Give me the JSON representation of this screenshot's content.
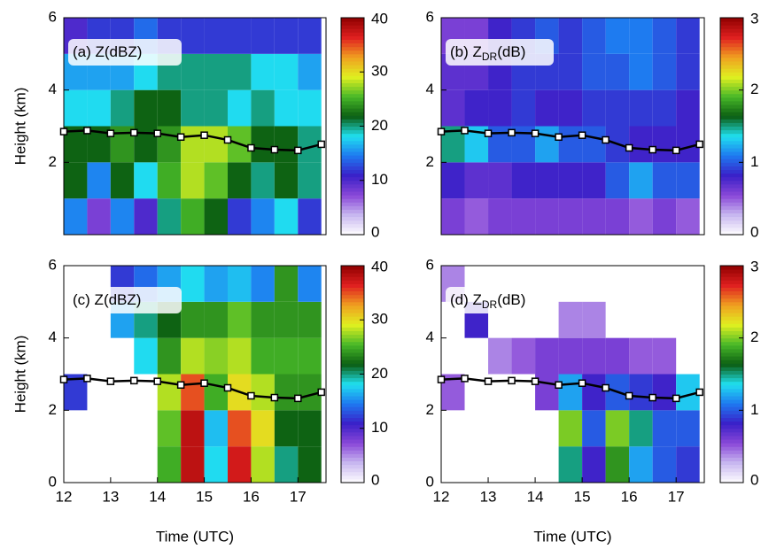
{
  "chart_data": [
    {
      "type": "heatmap",
      "label_parts": [
        "(a) Z",
        "(dBZ)"
      ],
      "ylabel": "Height (km)",
      "xlim": [
        12,
        17.6
      ],
      "ylim": [
        0,
        6
      ],
      "yticks": [
        2,
        4,
        6
      ],
      "xbins": [
        12,
        12.5,
        13,
        13.5,
        14,
        14.5,
        15,
        15.5,
        16,
        16.5,
        17,
        17.5
      ],
      "ybins": [
        0,
        1,
        2,
        3,
        4,
        5,
        6
      ],
      "z": [
        [
          15,
          8,
          15,
          10,
          20,
          25,
          22,
          12,
          15,
          18,
          12
        ],
        [
          22,
          15,
          22,
          18,
          25,
          28,
          26,
          22,
          20,
          22,
          20
        ],
        [
          22,
          22,
          24,
          22,
          24,
          28,
          28,
          26,
          22,
          22,
          20
        ],
        [
          18,
          18,
          20,
          22,
          22,
          20,
          20,
          18,
          20,
          18,
          18
        ],
        [
          16,
          16,
          16,
          18,
          20,
          20,
          20,
          20,
          18,
          18,
          16
        ],
        [
          10,
          12,
          12,
          14,
          12,
          12,
          12,
          12,
          12,
          12,
          12
        ]
      ],
      "colorbar": {
        "lim": [
          0,
          40
        ],
        "ticks": [
          0,
          10,
          20,
          30,
          40
        ]
      },
      "line": {
        "color": "#000000",
        "x": [
          12,
          12.5,
          13,
          13.5,
          14,
          14.5,
          15,
          15.5,
          16,
          16.5,
          17,
          17.5
        ],
        "y": [
          2.85,
          2.88,
          2.8,
          2.82,
          2.8,
          2.7,
          2.75,
          2.62,
          2.4,
          2.35,
          2.33,
          2.5
        ]
      }
    },
    {
      "type": "heatmap",
      "label_parts": [
        "(b) Z",
        "DR",
        "(dB)"
      ],
      "xlim": [
        12,
        17.6
      ],
      "ylim": [
        0,
        6
      ],
      "yticks": [
        2,
        4,
        6
      ],
      "xbins": [
        12,
        12.5,
        13,
        13.5,
        14,
        14.5,
        15,
        15.5,
        16,
        16.5,
        17,
        17.5
      ],
      "ybins": [
        0,
        1,
        2,
        3,
        4,
        5,
        6
      ],
      "z": [
        [
          0.6,
          0.5,
          0.6,
          0.6,
          0.6,
          0.6,
          0.6,
          0.6,
          0.5,
          0.6,
          0.5
        ],
        [
          0.8,
          0.7,
          0.7,
          0.8,
          0.8,
          0.8,
          0.8,
          1.0,
          1.2,
          1.0,
          1.0
        ],
        [
          1.5,
          1.3,
          1.0,
          1.0,
          1.2,
          1.0,
          1.0,
          0.9,
          0.8,
          0.8,
          0.8
        ],
        [
          0.7,
          0.8,
          0.8,
          0.9,
          0.8,
          0.8,
          0.9,
          0.9,
          0.9,
          0.9,
          0.8
        ],
        [
          0.7,
          0.7,
          0.8,
          0.9,
          0.9,
          0.9,
          1.0,
          1.0,
          1.1,
          1.0,
          0.9
        ],
        [
          0.6,
          0.6,
          0.8,
          0.9,
          1.0,
          0.9,
          1.0,
          1.1,
          1.1,
          1.0,
          0.9
        ]
      ],
      "colorbar": {
        "lim": [
          0,
          3
        ],
        "ticks": [
          0,
          1,
          2,
          3
        ]
      },
      "line": {
        "color": "#000000",
        "x": [
          12,
          12.5,
          13,
          13.5,
          14,
          14.5,
          15,
          15.5,
          16,
          16.5,
          17,
          17.5
        ],
        "y": [
          2.85,
          2.88,
          2.8,
          2.82,
          2.8,
          2.7,
          2.75,
          2.62,
          2.4,
          2.35,
          2.33,
          2.5
        ]
      }
    },
    {
      "type": "heatmap",
      "label_parts": [
        "(c) Z",
        "(dBZ)"
      ],
      "ylabel": "Height (km)",
      "xlabel": "Time (UTC)",
      "xlim": [
        12,
        17.6
      ],
      "ylim": [
        0,
        6
      ],
      "xticks": [
        12,
        13,
        14,
        15,
        16,
        17
      ],
      "yticks": [
        0,
        2,
        4,
        6
      ],
      "xbins": [
        12,
        12.5,
        13,
        13.5,
        14,
        14.5,
        15,
        15.5,
        16,
        16.5,
        17,
        17.5
      ],
      "ybins": [
        0,
        1,
        2,
        3,
        4,
        5,
        6
      ],
      "z": [
        [
          null,
          null,
          null,
          null,
          25,
          38,
          18,
          37,
          28,
          20,
          22
        ],
        [
          null,
          null,
          null,
          null,
          26,
          38,
          17,
          35,
          30,
          22,
          22
        ],
        [
          12,
          null,
          null,
          null,
          28,
          35,
          25,
          30,
          28,
          24,
          24
        ],
        [
          null,
          null,
          null,
          18,
          24,
          28,
          27,
          28,
          25,
          25,
          25
        ],
        [
          null,
          null,
          16,
          20,
          22,
          24,
          24,
          26,
          24,
          24,
          24
        ],
        [
          null,
          null,
          12,
          14,
          16,
          18,
          16,
          17,
          15,
          24,
          15
        ]
      ],
      "colorbar": {
        "lim": [
          0,
          40
        ],
        "ticks": [
          0,
          10,
          20,
          30,
          40
        ]
      },
      "line": {
        "color": "#000000",
        "x": [
          12,
          12.5,
          13,
          13.5,
          14,
          14.5,
          15,
          15.5,
          16,
          16.5,
          17,
          17.5
        ],
        "y": [
          2.85,
          2.88,
          2.8,
          2.82,
          2.8,
          2.7,
          2.75,
          2.62,
          2.4,
          2.35,
          2.33,
          2.5
        ]
      }
    },
    {
      "type": "heatmap",
      "label_parts": [
        "(d) Z",
        "DR",
        "(dB)"
      ],
      "xlabel": "Time (UTC)",
      "xlim": [
        12,
        17.6
      ],
      "ylim": [
        0,
        6
      ],
      "xticks": [
        12,
        13,
        14,
        15,
        16,
        17
      ],
      "yticks": [
        0,
        2,
        4,
        6
      ],
      "xbins": [
        12,
        12.5,
        13,
        13.5,
        14,
        14.5,
        15,
        15.5,
        16,
        16.5,
        17,
        17.5
      ],
      "ybins": [
        0,
        1,
        2,
        3,
        4,
        5,
        6
      ],
      "z": [
        [
          null,
          null,
          null,
          null,
          null,
          1.5,
          0.8,
          1.8,
          1.2,
          1.0,
          0.9
        ],
        [
          null,
          null,
          null,
          null,
          null,
          2.0,
          1.0,
          2.0,
          1.5,
          1.0,
          1.0
        ],
        [
          0.5,
          null,
          null,
          null,
          0.6,
          1.2,
          0.8,
          1.0,
          0.9,
          0.8,
          1.3
        ],
        [
          null,
          null,
          0.4,
          0.5,
          0.6,
          0.6,
          0.6,
          0.6,
          0.5,
          0.5,
          null
        ],
        [
          null,
          0.8,
          null,
          null,
          null,
          0.4,
          0.4,
          null,
          null,
          null,
          null
        ],
        [
          0.4,
          null,
          null,
          null,
          null,
          null,
          null,
          null,
          null,
          null,
          null
        ]
      ],
      "colorbar": {
        "lim": [
          0,
          3
        ],
        "ticks": [
          0,
          1,
          2,
          3
        ]
      },
      "line": {
        "color": "#000000",
        "x": [
          12,
          12.5,
          13,
          13.5,
          14,
          14.5,
          15,
          15.5,
          16,
          16.5,
          17,
          17.5
        ],
        "y": [
          2.85,
          2.88,
          2.8,
          2.82,
          2.8,
          2.7,
          2.75,
          2.62,
          2.4,
          2.35,
          2.33,
          2.5
        ]
      }
    }
  ],
  "colormap": [
    "#ffffff",
    "#c8b8f0",
    "#8a48d8",
    "#3a20c8",
    "#1e78f0",
    "#20e0f0",
    "#0b5e12",
    "#48b828",
    "#e0f020",
    "#f0a020",
    "#e02020",
    "#900000"
  ]
}
